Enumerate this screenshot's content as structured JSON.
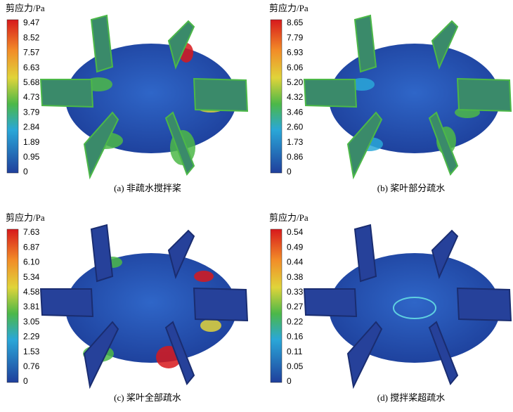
{
  "panels": [
    {
      "colorbar_title": "剪应力/Pa",
      "ticks": [
        "9.47",
        "8.52",
        "7.57",
        "6.63",
        "5.68",
        "4.73",
        "3.79",
        "2.84",
        "1.89",
        "0.95",
        "0"
      ],
      "caption": "(a) 非疏水搅拌桨"
    },
    {
      "colorbar_title": "剪应力/Pa",
      "ticks": [
        "8.65",
        "7.79",
        "6.93",
        "6.06",
        "5.20",
        "4.32",
        "3.46",
        "2.60",
        "1.73",
        "0.86",
        "0"
      ],
      "caption": "(b) 桨叶部分疏水"
    },
    {
      "colorbar_title": "剪应力/Pa",
      "ticks": [
        "7.63",
        "6.87",
        "6.10",
        "5.34",
        "4.58",
        "3.81",
        "3.05",
        "2.29",
        "1.53",
        "0.76",
        "0"
      ],
      "caption": "(c) 桨叶全部疏水"
    },
    {
      "colorbar_title": "剪应力/Pa",
      "ticks": [
        "0.54",
        "0.49",
        "0.44",
        "0.38",
        "0.33",
        "0.27",
        "0.22",
        "0.16",
        "0.11",
        "0.05",
        "0"
      ],
      "caption": "(d) 搅拌桨超疏水"
    }
  ]
}
